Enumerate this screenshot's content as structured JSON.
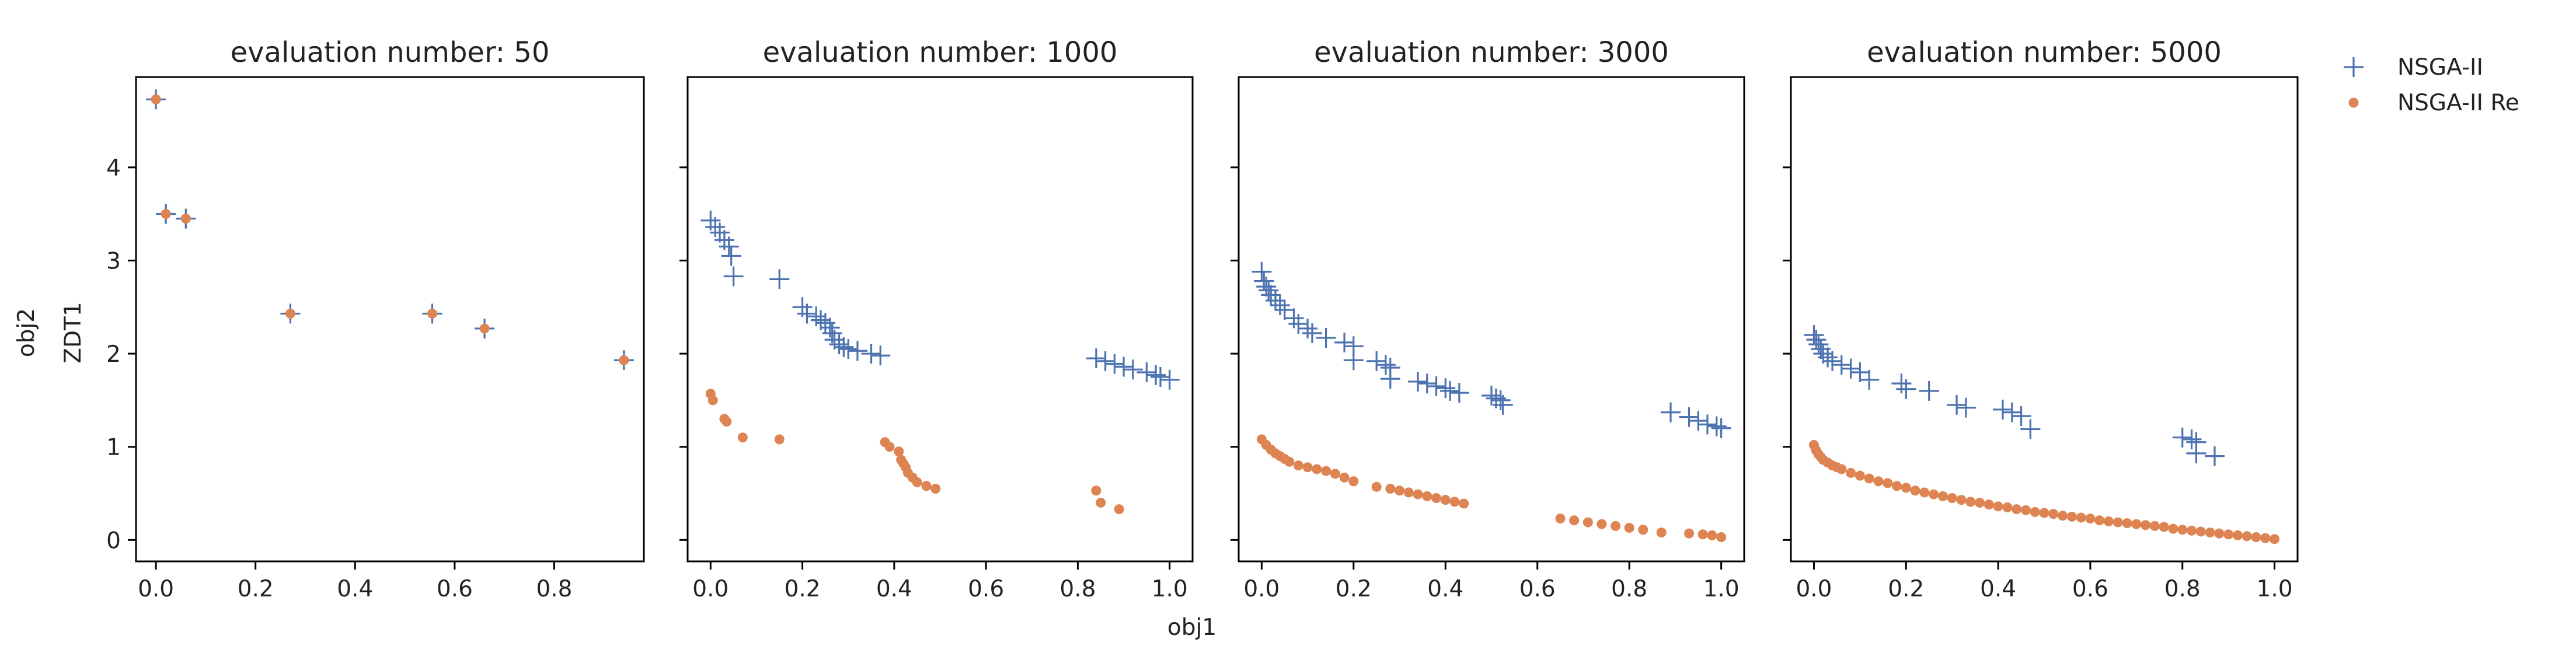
{
  "figure": {
    "row_label": "ZDT1",
    "xlabel": "obj1",
    "ylabel": "obj2"
  },
  "legend": {
    "placement": "right",
    "entries": [
      {
        "name": "NSGA-II",
        "marker": "plus",
        "color": "#4c72b0"
      },
      {
        "name": "NSGA-II Re",
        "marker": "circle",
        "color": "#dd8452"
      }
    ]
  },
  "chart_data": [
    {
      "type": "scatter",
      "title": "evaluation number: 50",
      "xlim": [
        -0.04,
        0.98
      ],
      "xticks": [
        0.0,
        0.2,
        0.4,
        0.6,
        0.8
      ],
      "xtick_labels": [
        "0.0",
        "0.2",
        "0.4",
        "0.6",
        "0.8"
      ],
      "ylim": [
        -0.23,
        4.97
      ],
      "yticks": [
        0,
        1,
        2,
        3,
        4
      ],
      "ytick_labels": [
        "0",
        "1",
        "2",
        "3",
        "4"
      ],
      "series": [
        {
          "name": "NSGA-II",
          "marker": "plus",
          "color": "#4c72b0",
          "points": [
            [
              0.0,
              4.73
            ],
            [
              0.02,
              3.5
            ],
            [
              0.06,
              3.45
            ],
            [
              0.27,
              2.43
            ],
            [
              0.555,
              2.43
            ],
            [
              0.66,
              2.27
            ],
            [
              0.94,
              1.93
            ]
          ]
        },
        {
          "name": "NSGA-II Re",
          "marker": "circle",
          "color": "#dd8452",
          "points": [
            [
              0.0,
              4.73
            ],
            [
              0.02,
              3.5
            ],
            [
              0.06,
              3.45
            ],
            [
              0.27,
              2.43
            ],
            [
              0.555,
              2.43
            ],
            [
              0.66,
              2.27
            ],
            [
              0.94,
              1.93
            ]
          ]
        }
      ]
    },
    {
      "type": "scatter",
      "title": "evaluation number: 1000",
      "xlim": [
        -0.05,
        1.05
      ],
      "xticks": [
        0.0,
        0.2,
        0.4,
        0.6,
        0.8,
        1.0
      ],
      "xtick_labels": [
        "0.0",
        "0.2",
        "0.4",
        "0.6",
        "0.8",
        "1.0"
      ],
      "ylim": [
        -0.23,
        4.97
      ],
      "yticks": [
        0,
        1,
        2,
        3,
        4
      ],
      "series": [
        {
          "name": "NSGA-II",
          "marker": "plus",
          "color": "#4c72b0",
          "points": [
            [
              0.0,
              3.43
            ],
            [
              0.01,
              3.36
            ],
            [
              0.02,
              3.3
            ],
            [
              0.03,
              3.22
            ],
            [
              0.04,
              3.15
            ],
            [
              0.045,
              3.05
            ],
            [
              0.05,
              2.83
            ],
            [
              0.15,
              2.8
            ],
            [
              0.2,
              2.5
            ],
            [
              0.21,
              2.43
            ],
            [
              0.23,
              2.4
            ],
            [
              0.24,
              2.36
            ],
            [
              0.25,
              2.33
            ],
            [
              0.26,
              2.28
            ],
            [
              0.265,
              2.22
            ],
            [
              0.27,
              2.15
            ],
            [
              0.28,
              2.1
            ],
            [
              0.29,
              2.07
            ],
            [
              0.3,
              2.05
            ],
            [
              0.32,
              2.03
            ],
            [
              0.35,
              2.0
            ],
            [
              0.37,
              1.98
            ],
            [
              0.84,
              1.95
            ],
            [
              0.86,
              1.92
            ],
            [
              0.88,
              1.89
            ],
            [
              0.9,
              1.86
            ],
            [
              0.92,
              1.83
            ],
            [
              0.95,
              1.8
            ],
            [
              0.97,
              1.77
            ],
            [
              0.98,
              1.75
            ],
            [
              1.0,
              1.72
            ]
          ]
        },
        {
          "name": "NSGA-II Re",
          "marker": "circle",
          "color": "#dd8452",
          "points": [
            [
              0.0,
              1.57
            ],
            [
              0.005,
              1.5
            ],
            [
              0.03,
              1.3
            ],
            [
              0.035,
              1.27
            ],
            [
              0.07,
              1.1
            ],
            [
              0.15,
              1.08
            ],
            [
              0.38,
              1.05
            ],
            [
              0.39,
              1.0
            ],
            [
              0.41,
              0.95
            ],
            [
              0.415,
              0.86
            ],
            [
              0.42,
              0.82
            ],
            [
              0.425,
              0.78
            ],
            [
              0.43,
              0.72
            ],
            [
              0.44,
              0.67
            ],
            [
              0.45,
              0.62
            ],
            [
              0.47,
              0.58
            ],
            [
              0.49,
              0.55
            ],
            [
              0.84,
              0.53
            ],
            [
              0.85,
              0.4
            ],
            [
              0.89,
              0.33
            ]
          ]
        }
      ]
    },
    {
      "type": "scatter",
      "title": "evaluation number: 3000",
      "xlim": [
        -0.05,
        1.05
      ],
      "xticks": [
        0.0,
        0.2,
        0.4,
        0.6,
        0.8,
        1.0
      ],
      "xtick_labels": [
        "0.0",
        "0.2",
        "0.4",
        "0.6",
        "0.8",
        "1.0"
      ],
      "ylim": [
        -0.23,
        4.97
      ],
      "yticks": [
        0,
        1,
        2,
        3,
        4
      ],
      "series": [
        {
          "name": "NSGA-II",
          "marker": "plus",
          "color": "#4c72b0",
          "points": [
            [
              0.0,
              2.88
            ],
            [
              0.005,
              2.78
            ],
            [
              0.01,
              2.72
            ],
            [
              0.015,
              2.68
            ],
            [
              0.02,
              2.63
            ],
            [
              0.03,
              2.57
            ],
            [
              0.04,
              2.52
            ],
            [
              0.05,
              2.47
            ],
            [
              0.07,
              2.38
            ],
            [
              0.08,
              2.32
            ],
            [
              0.1,
              2.27
            ],
            [
              0.11,
              2.22
            ],
            [
              0.14,
              2.17
            ],
            [
              0.18,
              2.12
            ],
            [
              0.2,
              2.08
            ],
            [
              0.2,
              1.93
            ],
            [
              0.25,
              1.92
            ],
            [
              0.27,
              1.88
            ],
            [
              0.28,
              1.85
            ],
            [
              0.28,
              1.73
            ],
            [
              0.34,
              1.7
            ],
            [
              0.36,
              1.68
            ],
            [
              0.38,
              1.65
            ],
            [
              0.4,
              1.63
            ],
            [
              0.41,
              1.6
            ],
            [
              0.43,
              1.58
            ],
            [
              0.5,
              1.55
            ],
            [
              0.51,
              1.52
            ],
            [
              0.52,
              1.5
            ],
            [
              0.525,
              1.45
            ],
            [
              0.89,
              1.37
            ],
            [
              0.93,
              1.32
            ],
            [
              0.95,
              1.28
            ],
            [
              0.97,
              1.24
            ],
            [
              0.99,
              1.22
            ],
            [
              1.0,
              1.2
            ]
          ]
        },
        {
          "name": "NSGA-II Re",
          "marker": "circle",
          "color": "#dd8452",
          "points": [
            [
              0.0,
              1.08
            ],
            [
              0.01,
              1.02
            ],
            [
              0.02,
              0.97
            ],
            [
              0.03,
              0.93
            ],
            [
              0.04,
              0.9
            ],
            [
              0.05,
              0.87
            ],
            [
              0.06,
              0.84
            ],
            [
              0.08,
              0.8
            ],
            [
              0.1,
              0.78
            ],
            [
              0.12,
              0.76
            ],
            [
              0.14,
              0.74
            ],
            [
              0.16,
              0.71
            ],
            [
              0.18,
              0.67
            ],
            [
              0.2,
              0.63
            ],
            [
              0.25,
              0.57
            ],
            [
              0.28,
              0.55
            ],
            [
              0.3,
              0.53
            ],
            [
              0.32,
              0.51
            ],
            [
              0.34,
              0.49
            ],
            [
              0.36,
              0.47
            ],
            [
              0.38,
              0.45
            ],
            [
              0.4,
              0.43
            ],
            [
              0.42,
              0.41
            ],
            [
              0.44,
              0.39
            ],
            [
              0.65,
              0.23
            ],
            [
              0.68,
              0.21
            ],
            [
              0.71,
              0.19
            ],
            [
              0.74,
              0.17
            ],
            [
              0.77,
              0.15
            ],
            [
              0.8,
              0.13
            ],
            [
              0.83,
              0.11
            ],
            [
              0.87,
              0.08
            ],
            [
              0.93,
              0.07
            ],
            [
              0.96,
              0.06
            ],
            [
              0.98,
              0.05
            ],
            [
              1.0,
              0.03
            ]
          ]
        }
      ]
    },
    {
      "type": "scatter",
      "title": "evaluation number: 5000",
      "xlim": [
        -0.05,
        1.05
      ],
      "xticks": [
        0.0,
        0.2,
        0.4,
        0.6,
        0.8,
        1.0
      ],
      "xtick_labels": [
        "0.0",
        "0.2",
        "0.4",
        "0.6",
        "0.8",
        "1.0"
      ],
      "ylim": [
        -0.23,
        4.97
      ],
      "yticks": [
        0,
        1,
        2,
        3,
        4
      ],
      "series": [
        {
          "name": "NSGA-II",
          "marker": "plus",
          "color": "#4c72b0",
          "points": [
            [
              0.0,
              2.2
            ],
            [
              0.005,
              2.15
            ],
            [
              0.01,
              2.1
            ],
            [
              0.015,
              2.05
            ],
            [
              0.02,
              2.0
            ],
            [
              0.03,
              1.96
            ],
            [
              0.04,
              1.92
            ],
            [
              0.06,
              1.88
            ],
            [
              0.08,
              1.84
            ],
            [
              0.1,
              1.8
            ],
            [
              0.12,
              1.72
            ],
            [
              0.19,
              1.68
            ],
            [
              0.2,
              1.62
            ],
            [
              0.25,
              1.6
            ],
            [
              0.31,
              1.45
            ],
            [
              0.33,
              1.42
            ],
            [
              0.41,
              1.4
            ],
            [
              0.43,
              1.37
            ],
            [
              0.45,
              1.33
            ],
            [
              0.47,
              1.19
            ],
            [
              0.8,
              1.1
            ],
            [
              0.82,
              1.08
            ],
            [
              0.83,
              1.05
            ],
            [
              0.83,
              0.93
            ],
            [
              0.87,
              0.9
            ]
          ]
        },
        {
          "name": "NSGA-II Re",
          "marker": "circle",
          "color": "#dd8452",
          "points": [
            [
              0.0,
              1.02
            ],
            [
              0.005,
              0.96
            ],
            [
              0.01,
              0.92
            ],
            [
              0.015,
              0.89
            ],
            [
              0.02,
              0.86
            ],
            [
              0.03,
              0.83
            ],
            [
              0.04,
              0.8
            ],
            [
              0.05,
              0.78
            ],
            [
              0.06,
              0.76
            ],
            [
              0.08,
              0.72
            ],
            [
              0.1,
              0.69
            ],
            [
              0.12,
              0.66
            ],
            [
              0.14,
              0.63
            ],
            [
              0.16,
              0.61
            ],
            [
              0.18,
              0.58
            ],
            [
              0.2,
              0.56
            ],
            [
              0.22,
              0.53
            ],
            [
              0.24,
              0.51
            ],
            [
              0.26,
              0.49
            ],
            [
              0.28,
              0.47
            ],
            [
              0.3,
              0.45
            ],
            [
              0.32,
              0.43
            ],
            [
              0.34,
              0.41
            ],
            [
              0.36,
              0.4
            ],
            [
              0.38,
              0.38
            ],
            [
              0.4,
              0.36
            ],
            [
              0.42,
              0.35
            ],
            [
              0.44,
              0.33
            ],
            [
              0.46,
              0.32
            ],
            [
              0.48,
              0.3
            ],
            [
              0.5,
              0.29
            ],
            [
              0.52,
              0.28
            ],
            [
              0.54,
              0.26
            ],
            [
              0.56,
              0.25
            ],
            [
              0.58,
              0.24
            ],
            [
              0.6,
              0.23
            ],
            [
              0.62,
              0.21
            ],
            [
              0.64,
              0.2
            ],
            [
              0.66,
              0.19
            ],
            [
              0.68,
              0.18
            ],
            [
              0.7,
              0.17
            ],
            [
              0.72,
              0.16
            ],
            [
              0.74,
              0.15
            ],
            [
              0.76,
              0.14
            ],
            [
              0.78,
              0.12
            ],
            [
              0.8,
              0.11
            ],
            [
              0.82,
              0.1
            ],
            [
              0.84,
              0.09
            ],
            [
              0.86,
              0.08
            ],
            [
              0.88,
              0.07
            ],
            [
              0.9,
              0.06
            ],
            [
              0.92,
              0.05
            ],
            [
              0.94,
              0.04
            ],
            [
              0.96,
              0.03
            ],
            [
              0.98,
              0.02
            ],
            [
              1.0,
              0.01
            ]
          ]
        }
      ]
    }
  ]
}
